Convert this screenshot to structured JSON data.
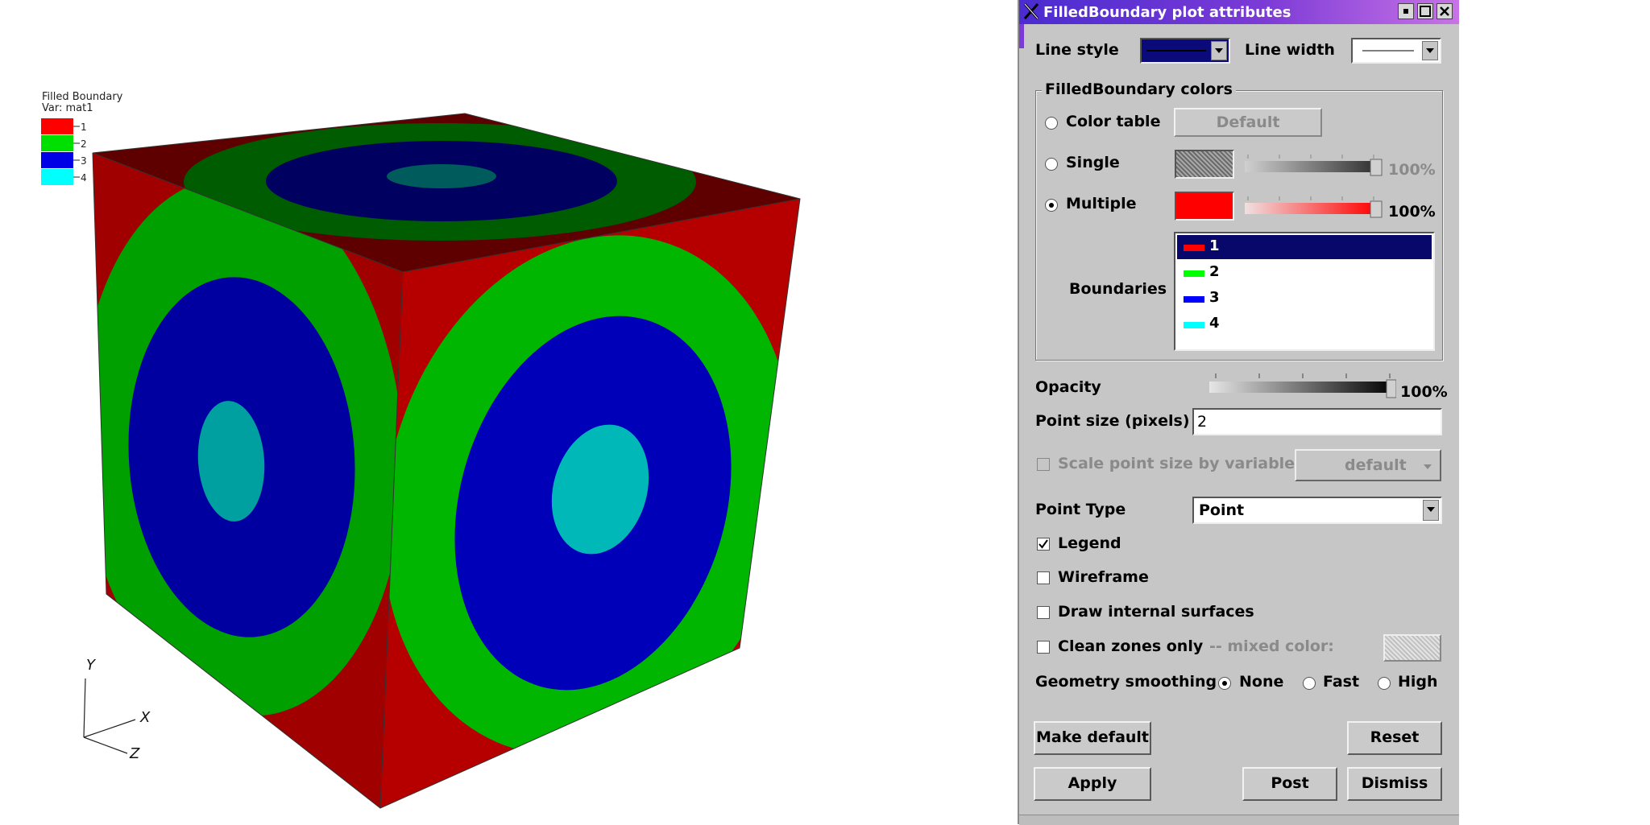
{
  "viz": {
    "legend": {
      "title": "Filled Boundary",
      "var": "Var: mat1",
      "items": [
        {
          "label": "1",
          "color": "#ff0000"
        },
        {
          "label": "2",
          "color": "#00e000"
        },
        {
          "label": "3",
          "color": "#0000e6"
        },
        {
          "label": "4",
          "color": "#00ffff"
        }
      ]
    },
    "axes": {
      "y": "Y",
      "x": "X",
      "z": "Z"
    }
  },
  "dialog": {
    "title": "FilledBoundary plot attributes",
    "line_style_label": "Line style",
    "line_width_label": "Line width",
    "colors_group_title": "FilledBoundary colors",
    "color_table_label": "Color table",
    "color_table_button": "Default",
    "single_label": "Single",
    "single_opacity": "100%",
    "multiple_label": "Multiple",
    "multiple_opacity": "100%",
    "boundaries_label": "Boundaries",
    "boundaries": [
      {
        "label": "1",
        "color": "#ff0000",
        "selected": true
      },
      {
        "label": "2",
        "color": "#00ff00",
        "selected": false
      },
      {
        "label": "3",
        "color": "#0000ff",
        "selected": false
      },
      {
        "label": "4",
        "color": "#00ffff",
        "selected": false
      }
    ],
    "opacity_label": "Opacity",
    "opacity_value": "100%",
    "point_size_label": "Point size (pixels)",
    "point_size_value": "2",
    "scale_point_label": "Scale point size by variable",
    "scale_point_var": "default",
    "point_type_label": "Point Type",
    "point_type_value": "Point",
    "legend_label": "Legend",
    "wireframe_label": "Wireframe",
    "internal_surfaces_label": "Draw internal surfaces",
    "clean_zones_label": "Clean zones only",
    "mixed_color_label": "--  mixed color:",
    "smoothing_label": "Geometry smoothing",
    "smoothing_none": "None",
    "smoothing_fast": "Fast",
    "smoothing_high": "High",
    "make_default_button": "Make default",
    "reset_button": "Reset",
    "apply_button": "Apply",
    "post_button": "Post",
    "dismiss_button": "Dismiss"
  }
}
